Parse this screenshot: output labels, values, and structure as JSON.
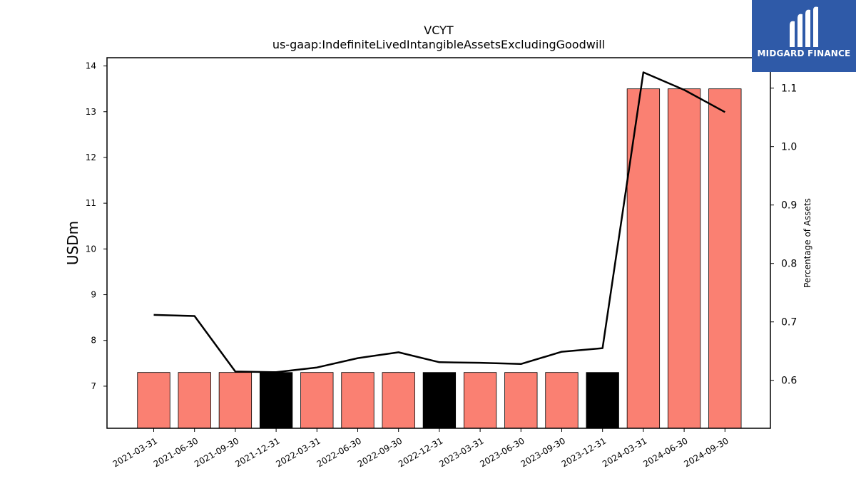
{
  "chart_data": {
    "type": "bar",
    "title": "VCYT",
    "subtitle": "us-gaap:IndefiniteLivedIntangibleAssetsExcludingGoodwill",
    "ylabel": "USDm",
    "y2label": "Percentage of Assets",
    "categories": [
      "2021-03-31",
      "2021-06-30",
      "2021-09-30",
      "2021-12-31",
      "2022-03-31",
      "2022-06-30",
      "2022-09-30",
      "2022-12-31",
      "2023-03-31",
      "2023-06-30",
      "2023-09-30",
      "2023-12-31",
      "2024-03-31",
      "2024-06-30",
      "2024-09-30"
    ],
    "bar_values": [
      7.3,
      7.3,
      7.3,
      7.3,
      7.3,
      7.3,
      7.3,
      7.3,
      7.3,
      7.3,
      7.3,
      7.3,
      13.5,
      13.5,
      13.5
    ],
    "bar_colors": [
      "#fa8072",
      "#fa8072",
      "#fa8072",
      "#000000",
      "#fa8072",
      "#fa8072",
      "#fa8072",
      "#000000",
      "#fa8072",
      "#fa8072",
      "#fa8072",
      "#000000",
      "#fa8072",
      "#fa8072",
      "#fa8072"
    ],
    "line_values": [
      0.712,
      0.71,
      0.615,
      0.614,
      0.622,
      0.638,
      0.648,
      0.631,
      0.63,
      0.628,
      0.649,
      0.655,
      1.127,
      1.097,
      1.059
    ],
    "ylim": [
      6.08,
      14.18
    ],
    "y2lim": [
      0.518,
      1.152
    ],
    "yticks": [
      7,
      8,
      9,
      10,
      11,
      12,
      13,
      14
    ],
    "y2ticks": [
      "0.6",
      "0.7",
      "0.8",
      "0.9",
      "1.0",
      "1.1"
    ],
    "grid": false,
    "legend": "none"
  },
  "logo": {
    "text": "MIDGARD FINANCE",
    "color": "#2f5aa8"
  }
}
